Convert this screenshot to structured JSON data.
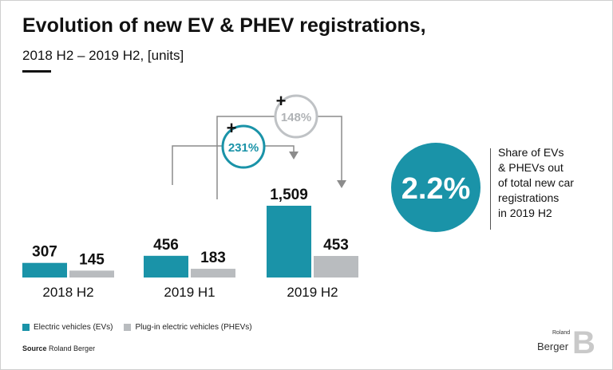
{
  "header": {
    "title": "Evolution of new EV & PHEV registrations,",
    "subtitle": "2018 H2 – 2019 H2, [units]"
  },
  "chart_data": {
    "type": "bar",
    "categories": [
      "2018 H2",
      "2019 H1",
      "2019 H2"
    ],
    "series": [
      {
        "name": "Electric vehicles (EVs)",
        "values": [
          307,
          456,
          1509
        ],
        "labels": [
          "307",
          "456",
          "1,509"
        ]
      },
      {
        "name": "Plug-in electric vehicles (PHEVs)",
        "values": [
          145,
          183,
          453
        ],
        "labels": [
          "145",
          "183",
          "453"
        ]
      }
    ],
    "colors": {
      "ev": "#1a93a8",
      "phev": "#b9bcbf",
      "growth_ev": "#1a93a8",
      "growth_phev": "#bfc2c5"
    },
    "annotations": [
      {
        "label": "231%",
        "series": "ev",
        "from": "2019 H1",
        "to": "2019 H2",
        "sign": "+"
      },
      {
        "label": "148%",
        "series": "phev",
        "from": "2019 H1",
        "to": "2019 H2",
        "sign": "+"
      }
    ],
    "ylim": [
      0,
      1600
    ]
  },
  "share": {
    "value": "2.2%",
    "text": [
      "Share of EVs",
      "& PHEVs out",
      "of total new car",
      "registrations",
      "in 2019 H2"
    ]
  },
  "legend": {
    "ev_label": "Electric vehicles (EVs)",
    "phev_label": "Plug-in electric vehicles (PHEVs)"
  },
  "source": {
    "prefix": "Source",
    "text": "Roland Berger"
  },
  "logo": {
    "small": "Roland",
    "big": "Berger",
    "letter": "B"
  }
}
